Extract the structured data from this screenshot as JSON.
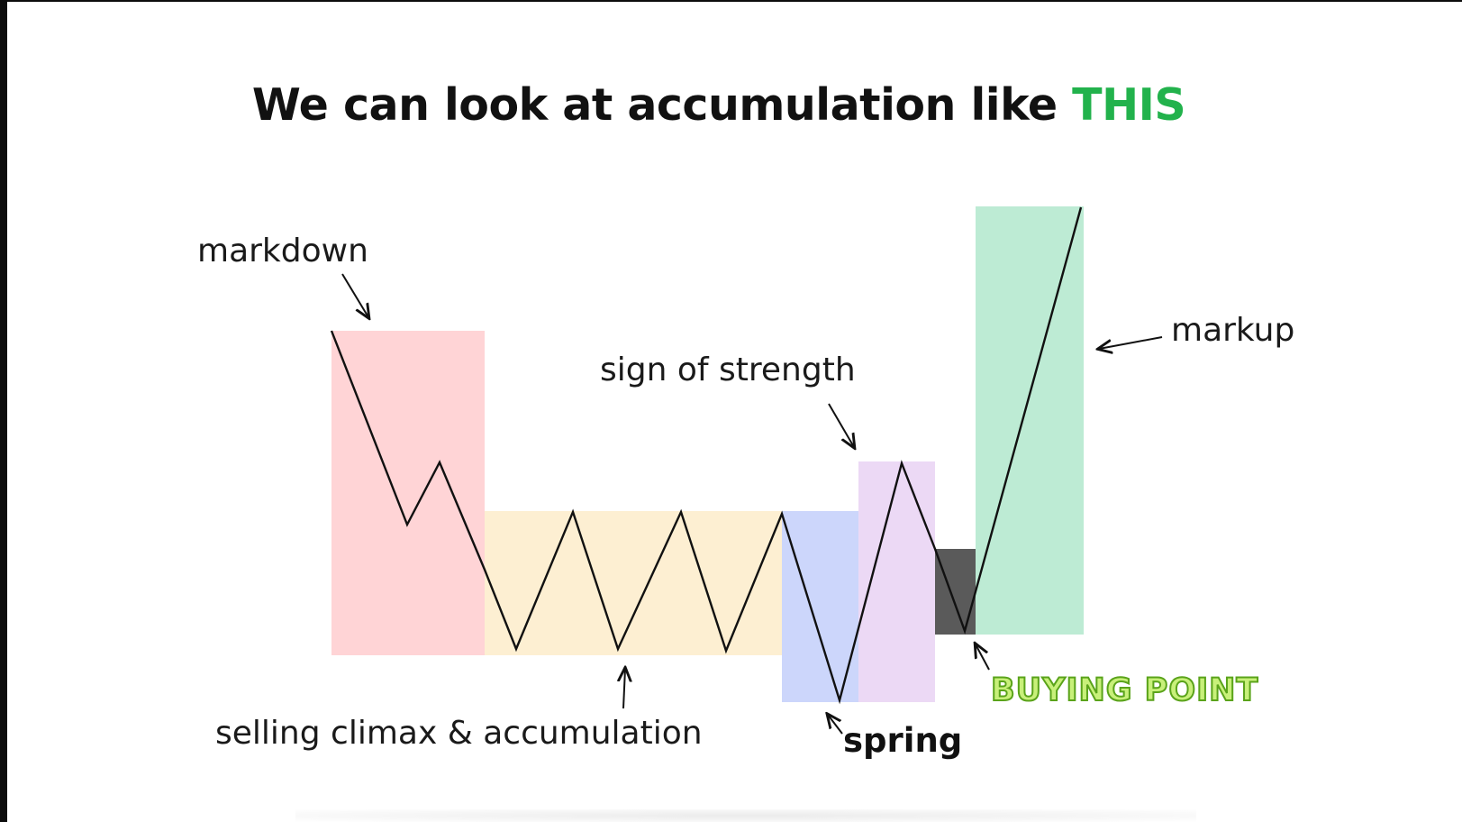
{
  "title": {
    "main": "We can look at accumulation like ",
    "highlight": "THIS"
  },
  "labels": {
    "markdown": "markdown",
    "sign_of_strength": "sign of strength",
    "markup": "markup",
    "selling_climax": "selling climax & accumulation",
    "spring": "spring",
    "buying_point": "BUYING POINT"
  },
  "colors": {
    "markdown_zone": "#ffd4d6",
    "accumulation_zone": "#fdefd2",
    "spring_zone": "#ccd6fb",
    "sos_zone": "#ecd9f5",
    "buying_zone": "#5a5a5a",
    "markup_zone": "#bdebd4",
    "price_line": "#111111",
    "title_highlight": "#22b24c",
    "buying_point_text": "#c8f07a"
  }
}
